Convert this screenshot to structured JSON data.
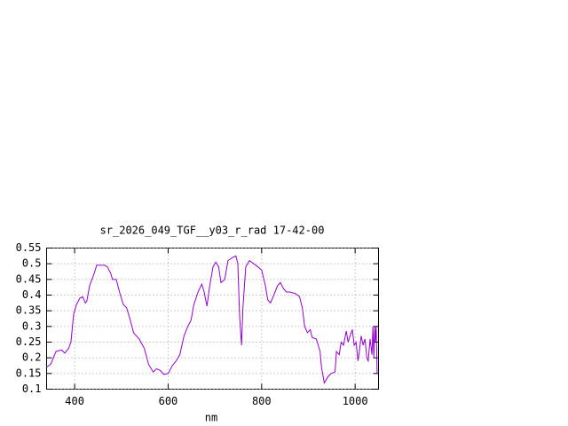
{
  "chart_data": {
    "type": "line",
    "title": "sr_2026_049_TGF__y03_r_rad 17-42-00",
    "xlabel": "nm",
    "x": [
      340,
      349,
      360,
      372,
      379,
      387,
      392,
      398,
      404,
      411,
      417,
      423,
      426,
      432,
      442,
      447,
      464,
      470,
      477,
      481,
      489,
      496,
      504,
      511,
      519,
      526,
      538,
      549,
      558,
      568,
      575,
      583,
      591,
      600,
      609,
      617,
      625,
      634,
      642,
      649,
      655,
      664,
      672,
      677,
      683,
      689,
      696,
      702,
      708,
      713,
      721,
      728,
      738,
      745,
      749,
      753,
      757,
      760,
      766,
      774,
      783,
      792,
      800,
      808,
      813,
      819,
      826,
      834,
      840,
      847,
      853,
      860,
      872,
      881,
      887,
      892,
      898,
      904,
      908,
      917,
      925,
      928,
      934,
      942,
      949,
      957,
      960,
      966,
      970,
      975,
      981,
      985,
      989,
      994,
      998,
      1002,
      1006,
      1009,
      1013,
      1017,
      1021,
      1025,
      1028,
      1032,
      1036,
      1038,
      1040,
      1042,
      1043,
      1045,
      1047
    ],
    "series": [
      {
        "color": "#9400d3",
        "values": [
          0.17,
          0.18,
          0.22,
          0.225,
          0.215,
          0.23,
          0.25,
          0.34,
          0.37,
          0.39,
          0.395,
          0.375,
          0.38,
          0.43,
          0.47,
          0.495,
          0.495,
          0.49,
          0.47,
          0.45,
          0.45,
          0.41,
          0.37,
          0.36,
          0.32,
          0.28,
          0.26,
          0.23,
          0.18,
          0.155,
          0.165,
          0.16,
          0.147,
          0.15,
          0.175,
          0.19,
          0.21,
          0.27,
          0.3,
          0.32,
          0.37,
          0.41,
          0.435,
          0.41,
          0.365,
          0.43,
          0.49,
          0.505,
          0.49,
          0.44,
          0.45,
          0.51,
          0.52,
          0.525,
          0.5,
          0.33,
          0.24,
          0.36,
          0.49,
          0.51,
          0.5,
          0.49,
          0.48,
          0.43,
          0.385,
          0.375,
          0.4,
          0.43,
          0.44,
          0.42,
          0.41,
          0.41,
          0.405,
          0.395,
          0.36,
          0.3,
          0.28,
          0.29,
          0.265,
          0.26,
          0.22,
          0.17,
          0.12,
          0.14,
          0.15,
          0.155,
          0.22,
          0.21,
          0.25,
          0.24,
          0.285,
          0.25,
          0.27,
          0.29,
          0.24,
          0.25,
          0.19,
          0.22,
          0.27,
          0.24,
          0.26,
          0.2,
          0.19,
          0.26,
          0.21,
          0.3,
          0.2,
          0.3,
          0.25,
          0.3,
          0.15
        ]
      }
    ],
    "xlim": [
      340,
      1050
    ],
    "ylim": [
      0.1,
      0.55
    ],
    "xticks": [
      400,
      600,
      800,
      1000
    ],
    "yticks": [
      0.1,
      0.15,
      0.2,
      0.25,
      0.3,
      0.35,
      0.4,
      0.45,
      0.5,
      0.55
    ],
    "grid": true
  }
}
